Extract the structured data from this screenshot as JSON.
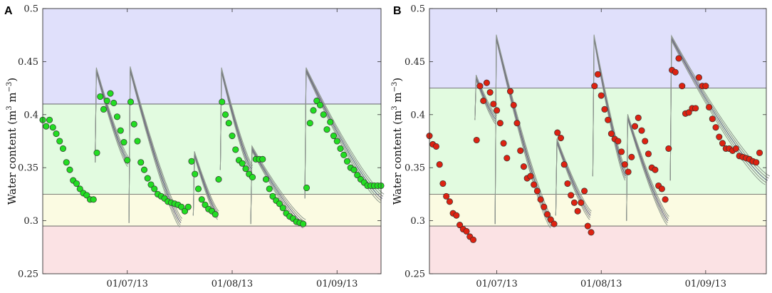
{
  "chart_data": [
    {
      "type": "scatter",
      "panel_label": "A",
      "ylabel": "Water content (m3 m−3)",
      "ylabel_main": "Water content (m",
      "ylabel_sup1": "3",
      "ylabel_mid": " m",
      "ylabel_sup2": "−3",
      "ylabel_end": ")",
      "ylim": [
        0.25,
        0.5
      ],
      "yticks": [
        0.25,
        0.3,
        0.35,
        0.4,
        0.45,
        0.5
      ],
      "ytick_labels": [
        "0.25",
        "0.3",
        "0.35",
        "0.4",
        "0.45",
        "0.5"
      ],
      "x_range_days": [
        0,
        100
      ],
      "xticks": [
        {
          "day": 25,
          "label": "01/07/13"
        },
        {
          "day": 56,
          "label": "01/08/13"
        },
        {
          "day": 87,
          "label": "01/09/13"
        }
      ],
      "bands": [
        {
          "from": 0.41,
          "to": 0.5,
          "color": "#e0e0fb"
        },
        {
          "from": 0.325,
          "to": 0.41,
          "color": "#e2fbe0"
        },
        {
          "from": 0.295,
          "to": 0.325,
          "color": "#fbfbe2"
        },
        {
          "from": 0.25,
          "to": 0.295,
          "color": "#fbe2e4"
        }
      ],
      "thresholds": [
        0.41,
        0.325,
        0.295
      ],
      "marker_color": "#22dd22",
      "observed": [
        [
          0,
          0.395
        ],
        [
          1,
          0.389
        ],
        [
          2,
          0.395
        ],
        [
          3,
          0.388
        ],
        [
          4,
          0.382
        ],
        [
          5,
          0.375
        ],
        [
          6,
          0.368
        ],
        [
          7,
          0.355
        ],
        [
          8,
          0.348
        ],
        [
          9,
          0.338
        ],
        [
          10,
          0.335
        ],
        [
          11,
          0.33
        ],
        [
          12,
          0.326
        ],
        [
          13,
          0.324
        ],
        [
          14,
          0.32
        ],
        [
          15,
          0.32
        ],
        [
          16,
          0.364
        ],
        [
          17,
          0.417
        ],
        [
          18,
          0.405
        ],
        [
          19,
          0.413
        ],
        [
          20,
          0.42
        ],
        [
          21,
          0.411
        ],
        [
          22,
          0.398
        ],
        [
          23,
          0.385
        ],
        [
          24,
          0.374
        ],
        [
          25,
          0.357
        ],
        [
          26,
          0.412
        ],
        [
          27,
          0.391
        ],
        [
          28,
          0.375
        ],
        [
          29,
          0.355
        ],
        [
          30,
          0.348
        ],
        [
          31,
          0.34
        ],
        [
          32,
          0.334
        ],
        [
          33,
          0.33
        ],
        [
          34,
          0.325
        ],
        [
          35,
          0.323
        ],
        [
          36,
          0.321
        ],
        [
          37,
          0.318
        ],
        [
          38,
          0.317
        ],
        [
          39,
          0.316
        ],
        [
          40,
          0.315
        ],
        [
          41,
          0.313
        ],
        [
          42,
          0.309
        ],
        [
          43,
          0.313
        ],
        [
          44,
          0.356
        ],
        [
          45,
          0.344
        ],
        [
          46,
          0.33
        ],
        [
          47,
          0.32
        ],
        [
          48,
          0.315
        ],
        [
          49,
          0.311
        ],
        [
          50,
          0.309
        ],
        [
          51,
          0.306
        ],
        [
          52,
          0.339
        ],
        [
          53,
          0.412
        ],
        [
          54,
          0.4
        ],
        [
          55,
          0.392
        ],
        [
          56,
          0.38
        ],
        [
          57,
          0.367
        ],
        [
          58,
          0.357
        ],
        [
          59,
          0.354
        ],
        [
          60,
          0.349
        ],
        [
          61,
          0.344
        ],
        [
          62,
          0.341
        ],
        [
          63,
          0.358
        ],
        [
          64,
          0.358
        ],
        [
          65,
          0.358
        ],
        [
          66,
          0.339
        ],
        [
          67,
          0.33
        ],
        [
          68,
          0.323
        ],
        [
          69,
          0.319
        ],
        [
          70,
          0.316
        ],
        [
          71,
          0.312
        ],
        [
          72,
          0.307
        ],
        [
          73,
          0.304
        ],
        [
          74,
          0.302
        ],
        [
          75,
          0.299
        ],
        [
          76,
          0.298
        ],
        [
          77,
          0.297
        ],
        [
          78,
          0.331
        ],
        [
          79,
          0.392
        ],
        [
          80,
          0.404
        ],
        [
          81,
          0.413
        ],
        [
          82,
          0.409
        ],
        [
          83,
          0.4
        ],
        [
          84,
          0.386
        ],
        [
          85,
          0.393
        ],
        [
          86,
          0.38
        ],
        [
          87,
          0.375
        ],
        [
          88,
          0.368
        ],
        [
          89,
          0.362
        ],
        [
          90,
          0.356
        ],
        [
          91,
          0.35
        ],
        [
          92,
          0.348
        ],
        [
          93,
          0.343
        ],
        [
          94,
          0.339
        ],
        [
          95,
          0.336
        ],
        [
          96,
          0.333
        ],
        [
          97,
          0.333
        ],
        [
          98,
          0.333
        ],
        [
          99,
          0.333
        ],
        [
          100,
          0.333
        ]
      ],
      "events": [
        {
          "day": 15.5,
          "top": 0.442,
          "dur": 9.5,
          "end": 0.355
        },
        {
          "day": 25.5,
          "top": 0.443,
          "dur": 15,
          "end": 0.298
        },
        {
          "day": 44.5,
          "top": 0.363,
          "dur": 7,
          "end": 0.305
        },
        {
          "day": 52.5,
          "top": 0.442,
          "dur": 9,
          "end": 0.348
        },
        {
          "day": 61.5,
          "top": 0.368,
          "dur": 15.5,
          "end": 0.297
        },
        {
          "day": 77.5,
          "top": 0.442,
          "dur": 22.5,
          "end": 0.321
        }
      ]
    },
    {
      "type": "scatter",
      "panel_label": "B",
      "ylabel": "Water content (m3 m−3)",
      "ylabel_main": "Water content (m",
      "ylabel_sup1": "3",
      "ylabel_mid": " m",
      "ylabel_sup2": "−3",
      "ylabel_end": ")",
      "ylim": [
        0.25,
        0.5
      ],
      "yticks": [
        0.25,
        0.3,
        0.35,
        0.4,
        0.45,
        0.5
      ],
      "ytick_labels": [
        "0.25",
        "0.3",
        "0.35",
        "0.4",
        "0.45",
        "0.5"
      ],
      "x_range_days": [
        0,
        100
      ],
      "xticks": [
        {
          "day": 20,
          "label": "01/07/13"
        },
        {
          "day": 51,
          "label": "01/08/13"
        },
        {
          "day": 82,
          "label": "01/09/13"
        }
      ],
      "bands": [
        {
          "from": 0.425,
          "to": 0.5,
          "color": "#e0e0fb"
        },
        {
          "from": 0.325,
          "to": 0.425,
          "color": "#e2fbe0"
        },
        {
          "from": 0.295,
          "to": 0.325,
          "color": "#fbfbe2"
        },
        {
          "from": 0.25,
          "to": 0.295,
          "color": "#fbe2e4"
        }
      ],
      "thresholds": [
        0.425,
        0.325,
        0.295
      ],
      "marker_color": "#dd2211",
      "observed": [
        [
          0,
          0.38
        ],
        [
          1,
          0.372
        ],
        [
          2,
          0.37
        ],
        [
          3,
          0.353
        ],
        [
          4,
          0.335
        ],
        [
          5,
          0.323
        ],
        [
          6,
          0.318
        ],
        [
          7,
          0.307
        ],
        [
          8,
          0.305
        ],
        [
          9,
          0.296
        ],
        [
          10,
          0.292
        ],
        [
          11,
          0.29
        ],
        [
          12,
          0.285
        ],
        [
          13,
          0.282
        ],
        [
          14,
          0.376
        ],
        [
          15,
          0.427
        ],
        [
          16,
          0.413
        ],
        [
          17,
          0.43
        ],
        [
          18,
          0.421
        ],
        [
          19,
          0.41
        ],
        [
          20,
          0.404
        ],
        [
          21,
          0.392
        ],
        [
          22,
          0.373
        ],
        [
          23,
          0.359
        ],
        [
          24,
          0.422
        ],
        [
          25,
          0.409
        ],
        [
          26,
          0.392
        ],
        [
          27,
          0.366
        ],
        [
          28,
          0.351
        ],
        [
          29,
          0.34
        ],
        [
          30,
          0.342
        ],
        [
          31,
          0.334
        ],
        [
          32,
          0.328
        ],
        [
          33,
          0.32
        ],
        [
          34,
          0.313
        ],
        [
          35,
          0.306
        ],
        [
          36,
          0.301
        ],
        [
          37,
          0.297
        ],
        [
          38,
          0.383
        ],
        [
          39,
          0.378
        ],
        [
          40,
          0.353
        ],
        [
          41,
          0.335
        ],
        [
          42,
          0.324
        ],
        [
          43,
          0.317
        ],
        [
          44,
          0.309
        ],
        [
          45,
          0.317
        ],
        [
          46,
          0.328
        ],
        [
          47,
          0.295
        ],
        [
          48,
          0.289
        ],
        [
          49,
          0.427
        ],
        [
          50,
          0.438
        ],
        [
          51,
          0.418
        ],
        [
          52,
          0.405
        ],
        [
          53,
          0.395
        ],
        [
          54,
          0.382
        ],
        [
          55,
          0.377
        ],
        [
          56,
          0.375
        ],
        [
          57,
          0.365
        ],
        [
          58,
          0.353
        ],
        [
          59,
          0.346
        ],
        [
          60,
          0.36
        ],
        [
          61,
          0.389
        ],
        [
          62,
          0.397
        ],
        [
          63,
          0.385
        ],
        [
          64,
          0.375
        ],
        [
          65,
          0.363
        ],
        [
          66,
          0.35
        ],
        [
          67,
          0.348
        ],
        [
          68,
          0.333
        ],
        [
          69,
          0.33
        ],
        [
          70,
          0.32
        ],
        [
          71,
          0.368
        ],
        [
          72,
          0.442
        ],
        [
          73,
          0.44
        ],
        [
          74,
          0.453
        ],
        [
          75,
          0.427
        ],
        [
          76,
          0.401
        ],
        [
          77,
          0.402
        ],
        [
          78,
          0.406
        ],
        [
          79,
          0.406
        ],
        [
          80,
          0.435
        ],
        [
          81,
          0.427
        ],
        [
          82,
          0.427
        ],
        [
          83,
          0.407
        ],
        [
          84,
          0.396
        ],
        [
          85,
          0.388
        ],
        [
          86,
          0.379
        ],
        [
          87,
          0.373
        ],
        [
          88,
          0.368
        ],
        [
          89,
          0.368
        ],
        [
          90,
          0.366
        ],
        [
          91,
          0.368
        ],
        [
          92,
          0.361
        ],
        [
          93,
          0.36
        ],
        [
          94,
          0.359
        ],
        [
          95,
          0.358
        ],
        [
          96,
          0.356
        ],
        [
          97,
          0.355
        ],
        [
          98,
          0.364
        ]
      ],
      "events": [
        {
          "day": 13.5,
          "top": 0.435,
          "dur": 6,
          "end": 0.395
        },
        {
          "day": 19.5,
          "top": 0.473,
          "dur": 16.5,
          "end": 0.297
        },
        {
          "day": 37.5,
          "top": 0.375,
          "dur": 10,
          "end": 0.305
        },
        {
          "day": 48.5,
          "top": 0.473,
          "dur": 9.5,
          "end": 0.342
        },
        {
          "day": 58.5,
          "top": 0.398,
          "dur": 12,
          "end": 0.3
        },
        {
          "day": 71.5,
          "top": 0.472,
          "dur": 28.5,
          "end": 0.338
        }
      ]
    }
  ]
}
